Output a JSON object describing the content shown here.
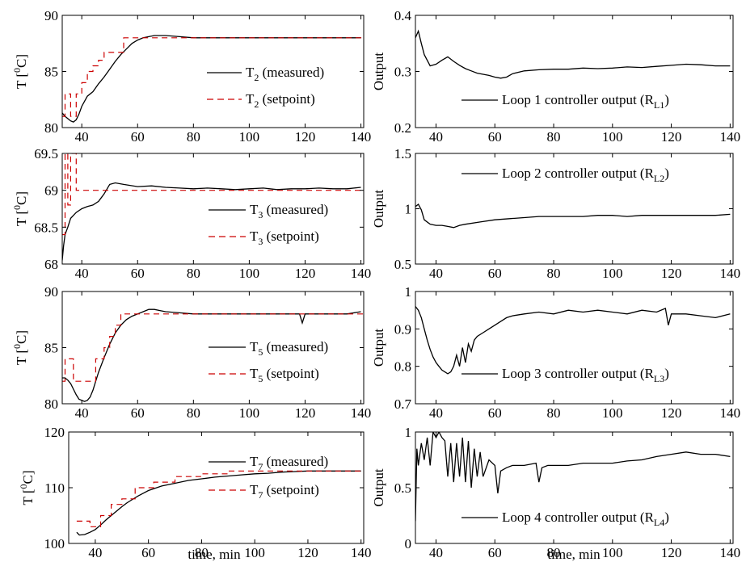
{
  "chart_data": [
    {
      "type": "line",
      "xlabel": "",
      "ylabel": "T [0C]",
      "ylabel_parts": [
        "T [",
        "0",
        "C]"
      ],
      "xlim": [
        33,
        141
      ],
      "ylim": [
        80,
        90
      ],
      "xticks": [
        "40",
        "60",
        "80",
        "100",
        "120",
        "140"
      ],
      "yticks": [
        "80",
        "85",
        "90"
      ],
      "series": [
        {
          "name": "T2 (measured)",
          "label": {
            "main": "T",
            "sub": "2",
            "rest": " (measured)"
          },
          "style": "solid",
          "color": "#000000",
          "x": [
            33,
            34,
            35,
            36,
            37,
            38,
            39,
            40,
            42,
            44,
            46,
            48,
            50,
            52,
            54,
            56,
            58,
            60,
            62,
            64,
            66,
            68,
            70,
            75,
            80,
            85,
            90,
            95,
            100,
            105,
            110,
            115,
            120,
            125,
            130,
            135,
            140
          ],
          "y": [
            81.3,
            81.0,
            80.8,
            80.6,
            80.5,
            80.7,
            81.2,
            81.9,
            82.8,
            83.2,
            83.9,
            84.5,
            85.2,
            85.9,
            86.5,
            87.0,
            87.5,
            87.8,
            88.0,
            88.1,
            88.2,
            88.2,
            88.2,
            88.1,
            88.0,
            88.0,
            88.0,
            88.0,
            88.0,
            88.0,
            88.0,
            88.0,
            88.0,
            88.0,
            88.0,
            88.0,
            88.0
          ]
        },
        {
          "name": "T2 (setpoint)",
          "label": {
            "main": "T",
            "sub": "2",
            "rest": " (setpoint)"
          },
          "style": "dashed",
          "color": "#cc0000",
          "x": [
            33,
            34,
            34,
            36,
            36,
            38,
            38,
            40,
            40,
            42,
            42,
            44,
            44,
            46,
            46,
            48,
            48,
            55,
            55,
            141
          ],
          "y": [
            81,
            81,
            83,
            83,
            81,
            81,
            83,
            83,
            84,
            84,
            85,
            85,
            85.5,
            85.5,
            86,
            86,
            86.7,
            86.7,
            88,
            88
          ]
        }
      ]
    },
    {
      "type": "line",
      "xlabel": "",
      "ylabel": "Output",
      "xlim": [
        33,
        141
      ],
      "ylim": [
        0.2,
        0.4
      ],
      "xticks": [
        "40",
        "60",
        "80",
        "100",
        "120",
        "140"
      ],
      "yticks": [
        "0.2",
        "0.3",
        "0.4"
      ],
      "series": [
        {
          "name": "Loop 1 controller output (RL1)",
          "label": {
            "main": "Loop 1 controller output (R",
            "sub": "L1",
            "rest": ")"
          },
          "style": "solid",
          "color": "#000000",
          "x": [
            33,
            34,
            35,
            36,
            38,
            40,
            42,
            44,
            46,
            48,
            50,
            52,
            54,
            56,
            58,
            60,
            62,
            64,
            66,
            70,
            75,
            80,
            85,
            90,
            95,
            100,
            105,
            110,
            115,
            120,
            125,
            130,
            135,
            140
          ],
          "y": [
            0.36,
            0.372,
            0.35,
            0.33,
            0.31,
            0.313,
            0.32,
            0.326,
            0.318,
            0.311,
            0.305,
            0.301,
            0.297,
            0.295,
            0.293,
            0.29,
            0.288,
            0.29,
            0.296,
            0.301,
            0.303,
            0.304,
            0.304,
            0.306,
            0.305,
            0.306,
            0.308,
            0.307,
            0.309,
            0.311,
            0.313,
            0.312,
            0.31,
            0.31
          ]
        }
      ]
    },
    {
      "type": "line",
      "xlabel": "",
      "ylabel": "T [0C]",
      "ylabel_parts": [
        "T [",
        "0",
        "C]"
      ],
      "xlim": [
        33,
        141
      ],
      "ylim": [
        68,
        69.5
      ],
      "xticks": [
        "40",
        "60",
        "80",
        "100",
        "120",
        "140"
      ],
      "yticks": [
        "68",
        "68.5",
        "69",
        "69.5"
      ],
      "series": [
        {
          "name": "T3 (measured)",
          "label": {
            "main": "T",
            "sub": "3",
            "rest": " (measured)"
          },
          "style": "solid",
          "color": "#000000",
          "x": [
            33,
            33.5,
            34,
            35,
            36,
            38,
            40,
            42,
            44,
            46,
            48,
            50,
            52,
            55,
            60,
            65,
            70,
            75,
            80,
            85,
            90,
            95,
            100,
            105,
            110,
            115,
            120,
            125,
            130,
            135,
            140
          ],
          "y": [
            68.05,
            68.25,
            68.4,
            68.5,
            68.62,
            68.7,
            68.75,
            68.78,
            68.8,
            68.85,
            68.95,
            69.08,
            69.1,
            69.08,
            69.05,
            69.06,
            69.04,
            69.03,
            69.02,
            69.03,
            69.02,
            69.01,
            69.02,
            69.03,
            69.01,
            69.02,
            69.02,
            69.03,
            69.02,
            69.02,
            69.04
          ]
        },
        {
          "name": "T3 (setpoint)",
          "label": {
            "main": "T",
            "sub": "3",
            "rest": " (setpoint)"
          },
          "style": "dashed",
          "color": "#cc0000",
          "x": [
            33,
            34,
            34,
            35,
            35,
            36,
            36,
            37,
            37,
            38,
            38,
            141
          ],
          "y": [
            68.4,
            68.4,
            69.5,
            69.5,
            68.8,
            68.8,
            69.5,
            69.5,
            69.5,
            69.5,
            69.0,
            69.0
          ]
        }
      ]
    },
    {
      "type": "line",
      "xlabel": "",
      "ylabel": "Output",
      "xlim": [
        33,
        141
      ],
      "ylim": [
        0.5,
        1.5
      ],
      "xticks": [
        "40",
        "60",
        "80",
        "100",
        "120",
        "140"
      ],
      "yticks": [
        "0.5",
        "1",
        "1.5"
      ],
      "series": [
        {
          "name": "Loop 2 controller output (RL2)",
          "label": {
            "main": "Loop 2 controller output (R",
            "sub": "L2",
            "rest": ")"
          },
          "style": "solid",
          "color": "#000000",
          "x": [
            33,
            34,
            35,
            36,
            38,
            40,
            42,
            44,
            46,
            48,
            50,
            55,
            60,
            65,
            70,
            75,
            80,
            85,
            90,
            95,
            100,
            105,
            110,
            115,
            120,
            125,
            130,
            135,
            140
          ],
          "y": [
            1.02,
            1.04,
            0.99,
            0.9,
            0.86,
            0.85,
            0.85,
            0.84,
            0.83,
            0.85,
            0.86,
            0.88,
            0.9,
            0.91,
            0.92,
            0.93,
            0.93,
            0.93,
            0.93,
            0.94,
            0.94,
            0.93,
            0.94,
            0.94,
            0.94,
            0.94,
            0.94,
            0.94,
            0.95
          ]
        }
      ]
    },
    {
      "type": "line",
      "xlabel": "",
      "ylabel": "T [0C]",
      "ylabel_parts": [
        "T [",
        "0",
        "C]"
      ],
      "xlim": [
        33,
        141
      ],
      "ylim": [
        80,
        90
      ],
      "xticks": [
        "40",
        "60",
        "80",
        "100",
        "120",
        "140"
      ],
      "yticks": [
        "80",
        "85",
        "90"
      ],
      "series": [
        {
          "name": "T5 (measured)",
          "label": {
            "main": "T",
            "sub": "5",
            "rest": " (measured)"
          },
          "style": "solid",
          "color": "#000000",
          "x": [
            33,
            34,
            35,
            36,
            37,
            38,
            39,
            40,
            41,
            42,
            43,
            44,
            45,
            46,
            48,
            50,
            52,
            54,
            56,
            58,
            60,
            62,
            64,
            66,
            68,
            70,
            75,
            80,
            85,
            90,
            95,
            100,
            105,
            110,
            115,
            118,
            119,
            120,
            125,
            130,
            135,
            140
          ],
          "y": [
            82.3,
            82.3,
            82.1,
            81.8,
            81.3,
            80.8,
            80.4,
            80.3,
            80.2,
            80.3,
            80.6,
            81.2,
            82.0,
            82.8,
            84.1,
            85.3,
            86.3,
            87.0,
            87.5,
            87.8,
            88.0,
            88.2,
            88.4,
            88.4,
            88.3,
            88.2,
            88.1,
            88.0,
            88.0,
            88.0,
            88.0,
            88.0,
            88.0,
            88.0,
            88.0,
            88.0,
            87.2,
            88.0,
            88.0,
            88.0,
            88.0,
            88.2
          ]
        },
        {
          "name": "T5 (setpoint)",
          "label": {
            "main": "T",
            "sub": "5",
            "rest": " (setpoint)"
          },
          "style": "dashed",
          "color": "#cc0000",
          "x": [
            33,
            34,
            34,
            37,
            37,
            45,
            45,
            48,
            48,
            50,
            50,
            52,
            52,
            54,
            54,
            141
          ],
          "y": [
            82,
            82,
            84,
            84,
            82,
            82,
            84,
            84,
            85,
            85,
            86,
            86,
            87,
            87,
            88,
            88
          ]
        }
      ]
    },
    {
      "type": "line",
      "xlabel": "",
      "ylabel": "Output",
      "xlim": [
        33,
        141
      ],
      "ylim": [
        0.7,
        1.0
      ],
      "xticks": [
        "40",
        "60",
        "80",
        "100",
        "120",
        "140"
      ],
      "yticks": [
        "0.7",
        "0.8",
        "0.9",
        "1"
      ],
      "series": [
        {
          "name": "Loop 3 controller output (RL3)",
          "label": {
            "main": "Loop 3 controller output (R",
            "sub": "L3",
            "rest": ")"
          },
          "style": "solid",
          "color": "#000000",
          "x": [
            33,
            34,
            35,
            36,
            37,
            38,
            39,
            40,
            41,
            42,
            43,
            44,
            45,
            46,
            47,
            48,
            49,
            50,
            51,
            52,
            53,
            54,
            56,
            58,
            60,
            62,
            64,
            66,
            70,
            75,
            80,
            85,
            90,
            95,
            100,
            105,
            110,
            115,
            118,
            119,
            120,
            125,
            130,
            135,
            140
          ],
          "y": [
            0.96,
            0.95,
            0.93,
            0.9,
            0.87,
            0.845,
            0.825,
            0.81,
            0.8,
            0.79,
            0.785,
            0.78,
            0.785,
            0.8,
            0.83,
            0.8,
            0.85,
            0.81,
            0.86,
            0.84,
            0.87,
            0.88,
            0.89,
            0.9,
            0.91,
            0.92,
            0.93,
            0.935,
            0.94,
            0.945,
            0.94,
            0.95,
            0.945,
            0.95,
            0.945,
            0.94,
            0.95,
            0.945,
            0.955,
            0.91,
            0.94,
            0.94,
            0.935,
            0.93,
            0.94
          ]
        }
      ]
    },
    {
      "type": "line",
      "xlabel": "time, min",
      "ylabel": "T [0C]",
      "ylabel_parts": [
        "T [",
        "0",
        "C]"
      ],
      "xlim": [
        30,
        141
      ],
      "ylim": [
        100,
        120
      ],
      "xticks": [
        "40",
        "60",
        "80",
        "100",
        "120",
        "140"
      ],
      "yticks": [
        "100",
        "110",
        "120"
      ],
      "series": [
        {
          "name": "T7 (measured)",
          "label": {
            "main": "T",
            "sub": "7",
            "rest": " (measured)"
          },
          "style": "solid",
          "color": "#000000",
          "x": [
            33,
            34,
            36,
            38,
            40,
            42,
            44,
            46,
            48,
            50,
            52,
            54,
            56,
            58,
            60,
            65,
            70,
            75,
            80,
            85,
            90,
            95,
            100,
            105,
            110,
            115,
            120,
            125,
            130,
            135,
            140
          ],
          "y": [
            102,
            101.5,
            101.6,
            102,
            102.5,
            103.3,
            104.2,
            105,
            105.8,
            106.6,
            107.3,
            107.9,
            108.5,
            109,
            109.5,
            110.3,
            110.8,
            111.3,
            111.6,
            111.9,
            112.1,
            112.3,
            112.5,
            112.6,
            112.8,
            112.9,
            113,
            113,
            113,
            113,
            113
          ]
        },
        {
          "name": "T7 (setpoint)",
          "label": {
            "main": "T",
            "sub": "7",
            "rest": " (setpoint)"
          },
          "style": "dashed",
          "color": "#cc0000",
          "x": [
            33,
            38,
            38,
            42,
            42,
            46,
            46,
            50,
            50,
            55,
            55,
            62,
            62,
            70,
            70,
            80,
            80,
            90,
            90,
            141
          ],
          "y": [
            104,
            104,
            103,
            103,
            105,
            105,
            107,
            107,
            108,
            108,
            110,
            110,
            111,
            111,
            112,
            112,
            112.5,
            112.5,
            113,
            113
          ]
        }
      ]
    },
    {
      "type": "line",
      "xlabel": "time, min",
      "ylabel": "Output",
      "xlim": [
        33,
        141
      ],
      "ylim": [
        0,
        1
      ],
      "xticks": [
        "40",
        "60",
        "80",
        "100",
        "120",
        "140"
      ],
      "yticks": [
        "0",
        "0.5",
        "1"
      ],
      "series": [
        {
          "name": "Loop 4 controller output (RL4)",
          "label": {
            "main": "Loop 4 controller output (R",
            "sub": "L4",
            "rest": ")"
          },
          "style": "solid",
          "color": "#000000",
          "x": [
            33,
            33.5,
            34,
            35,
            36,
            37,
            38,
            39,
            40,
            41,
            42,
            43,
            44,
            45,
            46,
            47,
            48,
            49,
            50,
            51,
            52,
            53,
            54,
            55,
            56,
            58,
            60,
            61,
            62,
            64,
            66,
            70,
            74,
            75,
            76,
            78,
            80,
            85,
            90,
            95,
            100,
            105,
            110,
            115,
            120,
            125,
            130,
            135,
            140
          ],
          "y": [
            0.2,
            0.85,
            0.7,
            0.9,
            0.75,
            0.95,
            0.7,
            1.0,
            0.95,
            1.0,
            0.95,
            0.92,
            0.6,
            0.9,
            0.55,
            0.9,
            0.6,
            0.95,
            0.55,
            0.92,
            0.5,
            0.85,
            0.6,
            0.82,
            0.6,
            0.75,
            0.7,
            0.45,
            0.65,
            0.68,
            0.7,
            0.7,
            0.72,
            0.55,
            0.68,
            0.7,
            0.7,
            0.7,
            0.72,
            0.72,
            0.72,
            0.74,
            0.75,
            0.78,
            0.8,
            0.82,
            0.8,
            0.8,
            0.78
          ]
        }
      ]
    }
  ]
}
